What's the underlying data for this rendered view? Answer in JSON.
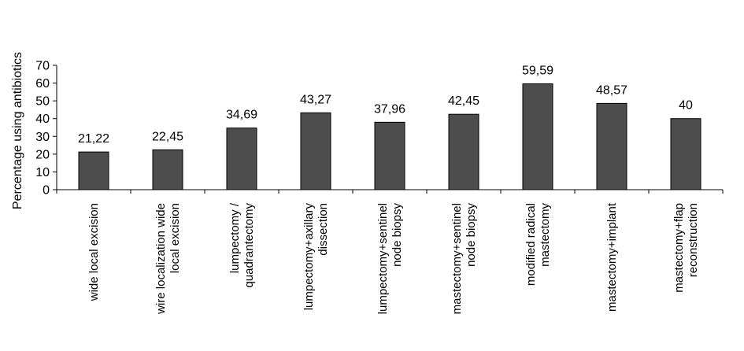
{
  "chart_data": {
    "type": "bar",
    "title": "",
    "xlabel": "",
    "ylabel": "Percentage using antibiotics",
    "ylim": [
      0,
      70
    ],
    "yticks": [
      0,
      10,
      20,
      30,
      40,
      50,
      60,
      70
    ],
    "grid": false,
    "legend": "none",
    "categories": [
      [
        "wide local excision"
      ],
      [
        "wire localization wide",
        "local excision"
      ],
      [
        "lumpectomy /",
        "quadrantectomy"
      ],
      [
        "lumpectomy+axillary",
        "dissection"
      ],
      [
        "lumpectomy+sentinel",
        "node biopsy"
      ],
      [
        "mastectomy+sentinel",
        "node biopsy"
      ],
      [
        "modified radical",
        "mastectomy"
      ],
      [
        "mastectomy+implant"
      ],
      [
        "mastectomy+flap",
        "reconstruction"
      ]
    ],
    "values": [
      21.22,
      22.45,
      34.69,
      43.27,
      37.96,
      42.45,
      59.59,
      48.57,
      40
    ],
    "value_labels": [
      "21,22",
      "22,45",
      "34,69",
      "43,27",
      "37,96",
      "42,45",
      "59,59",
      "48,57",
      "40"
    ],
    "bar_color": "#4d4d4d",
    "bar_stroke": "#000000"
  }
}
